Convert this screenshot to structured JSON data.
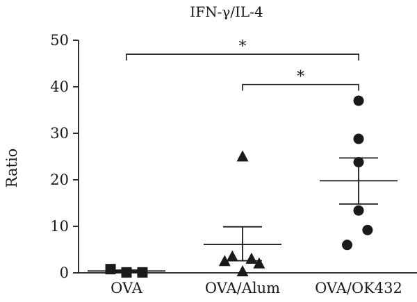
{
  "chart_data": {
    "type": "scatter",
    "title": "IFN-γ/IL-4",
    "xlabel": "",
    "ylabel": "Ratio",
    "ylim": [
      0,
      50
    ],
    "yticks": [
      0,
      10,
      20,
      30,
      40,
      50
    ],
    "categories": [
      "OVA",
      "OVA/Alum",
      "OVA/OK432"
    ],
    "series": [
      {
        "name": "OVA",
        "marker": "square",
        "points": [
          {
            "dx": -0.25,
            "y": 0.8
          },
          {
            "dx": 0.0,
            "y": 0.1
          },
          {
            "dx": 0.25,
            "y": 0.1
          }
        ],
        "mean": 0.4,
        "sem_low": 0.2,
        "sem_high": 0.6
      },
      {
        "name": "OVA/Alum",
        "marker": "triangle",
        "points": [
          {
            "dx": 0.0,
            "y": 25
          },
          {
            "dx": -0.28,
            "y": 2.5
          },
          {
            "dx": -0.16,
            "y": 3.5
          },
          {
            "dx": 0.14,
            "y": 3.0
          },
          {
            "dx": 0.26,
            "y": 2.0
          },
          {
            "dx": 0.0,
            "y": 0.3
          }
        ],
        "mean": 6.1,
        "sem_low": 2.6,
        "sem_high": 9.9
      },
      {
        "name": "OVA/OK432",
        "marker": "circle",
        "points": [
          {
            "dx": 0.0,
            "y": 37
          },
          {
            "dx": 0.0,
            "y": 28.8
          },
          {
            "dx": 0.0,
            "y": 23.8
          },
          {
            "dx": 0.0,
            "y": 13.4
          },
          {
            "dx": 0.14,
            "y": 9.2
          },
          {
            "dx": -0.18,
            "y": 6.0
          }
        ],
        "mean": 19.8,
        "sem_low": 14.8,
        "sem_high": 24.7
      }
    ],
    "annotations": [
      {
        "from": 0,
        "to": 2,
        "y": 47,
        "label": "*"
      },
      {
        "from": 1,
        "to": 2,
        "y": 40.5,
        "label": "*"
      }
    ]
  }
}
